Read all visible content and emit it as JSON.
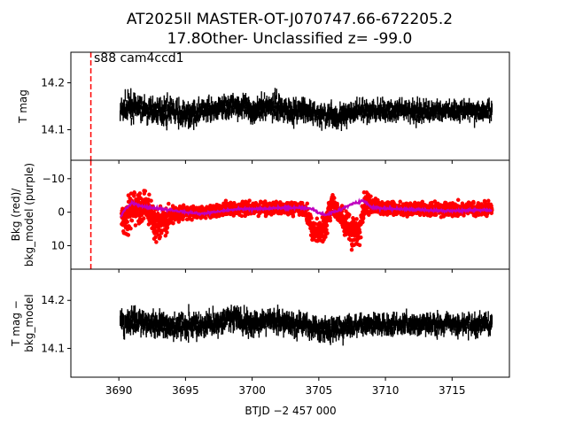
{
  "title_line1": "AT2025ll  MASTER-OT-J070747.66-672205.2",
  "title_line2": "17.8Other- Unclassified z= -99.0",
  "annotation": "s88 cam4ccd1",
  "xlabel": "BTJD −2 457 000",
  "colors": {
    "data": "#000000",
    "background": "#ff0000",
    "model": "#bf00bf",
    "marker_line": "#ff0000"
  },
  "chart_data": [
    {
      "type": "scatter",
      "panel": "top",
      "ylabel": "T mag",
      "y_inverted": true,
      "xlim": [
        3686.4,
        3719.3
      ],
      "ylim": [
        14.265,
        14.035
      ],
      "xticks": [
        3690,
        3695,
        3700,
        3705,
        3710,
        3715
      ],
      "yticks": [
        14.1,
        14.2
      ],
      "ytick_labels": [
        "14.1",
        "14.2"
      ],
      "sector_marker_x": 3687.9,
      "series": [
        {
          "x": [
            3690.1,
            3691.0,
            3692.0,
            3693.0,
            3694.0,
            3695.0,
            3696.0,
            3697.0,
            3698.0,
            3699.0,
            3700.0,
            3701.0,
            3702.0,
            3703.0,
            3704.0,
            3705.0,
            3706.0,
            3707.0,
            3708.0,
            3709.0,
            3710.0,
            3711.0,
            3712.0,
            3713.0,
            3714.0,
            3715.0,
            3716.0,
            3717.0,
            3718.0
          ],
          "y": [
            14.14,
            14.15,
            14.14,
            14.14,
            14.14,
            14.13,
            14.14,
            14.14,
            14.15,
            14.15,
            14.14,
            14.15,
            14.15,
            14.14,
            14.14,
            14.13,
            14.13,
            14.13,
            14.14,
            14.14,
            14.14,
            14.14,
            14.14,
            14.14,
            14.14,
            14.14,
            14.14,
            14.14,
            14.14
          ],
          "scatter": [
            0.045,
            0.05,
            0.045,
            0.045,
            0.045,
            0.045,
            0.045,
            0.045,
            0.045,
            0.045,
            0.045,
            0.045,
            0.045,
            0.045,
            0.045,
            0.045,
            0.045,
            0.045,
            0.04,
            0.04,
            0.04,
            0.04,
            0.04,
            0.04,
            0.04,
            0.04,
            0.04,
            0.04,
            0.04
          ]
        }
      ]
    },
    {
      "type": "scatter",
      "panel": "middle",
      "ylabel": "Bkg (red)/\nbkg_model (purple)",
      "xlim": [
        3686.4,
        3719.3
      ],
      "ylim": [
        -15.5,
        17
      ],
      "xticks": [
        3690,
        3695,
        3700,
        3705,
        3710,
        3715
      ],
      "yticks": [
        -10,
        0,
        10
      ],
      "ytick_labels": [
        "−10",
        "0",
        "10"
      ],
      "sector_marker_x": 3687.9,
      "series": [
        {
          "role": "background",
          "x": [
            3690.2,
            3690.6,
            3691.0,
            3691.4,
            3692.0,
            3692.5,
            3693.0,
            3693.5,
            3694.0,
            3695.0,
            3696.0,
            3697.0,
            3698.0,
            3699.0,
            3700.0,
            3701.0,
            3702.0,
            3703.0,
            3704.0,
            3704.5,
            3705.0,
            3705.5,
            3706.0,
            3706.5,
            3707.0,
            3707.5,
            3708.0,
            3708.5,
            3709.0,
            3710.0,
            3711.0,
            3712.0,
            3713.0,
            3714.0,
            3715.0,
            3716.0,
            3717.0,
            3718.0
          ],
          "y": [
            2,
            3,
            -2,
            -1,
            -3,
            2,
            4,
            3,
            1,
            0,
            0,
            0,
            -1,
            -1,
            -1,
            -1,
            -1,
            -1,
            -1,
            5,
            6,
            4,
            -2,
            1,
            3,
            6,
            6,
            -3,
            -2,
            -1,
            -1,
            -1,
            -1,
            -1,
            -1,
            -1,
            -1,
            -1
          ],
          "scatter": [
            12,
            13,
            12,
            10,
            9,
            10,
            11,
            10,
            6,
            4,
            4,
            4,
            4,
            4,
            4,
            4,
            4,
            4,
            4,
            9,
            8,
            10,
            8,
            6,
            9,
            10,
            9,
            8,
            5,
            4,
            4,
            4,
            4,
            4,
            4,
            4,
            4,
            4
          ]
        },
        {
          "role": "model",
          "x": [
            3690.1,
            3690.5,
            3691.0,
            3691.5,
            3692.0,
            3693.0,
            3694.0,
            3695.0,
            3696.0,
            3697.0,
            3698.0,
            3699.0,
            3700.0,
            3701.0,
            3702.0,
            3703.0,
            3704.0,
            3704.5,
            3705.0,
            3705.5,
            3706.0,
            3706.5,
            3707.0,
            3707.5,
            3708.0,
            3708.3,
            3709.0,
            3710.0,
            3711.0,
            3712.0,
            3713.0,
            3714.0,
            3715.0,
            3716.0,
            3717.0,
            3718.0
          ],
          "y": [
            1.5,
            -1,
            -3,
            -2,
            -1.5,
            -1,
            -0.5,
            0,
            0.5,
            0,
            -0.5,
            -1,
            -1,
            -1,
            -1.2,
            -1.3,
            -1.2,
            -1,
            0.3,
            0.8,
            0,
            -0.5,
            -1.5,
            -2.5,
            -3,
            -3.5,
            -1.5,
            -1,
            -1,
            -0.8,
            -0.6,
            -0.5,
            -0.4,
            -0.5,
            -0.6,
            -0.5
          ]
        }
      ]
    },
    {
      "type": "scatter",
      "panel": "bottom",
      "ylabel": "T mag −\nbkg_model",
      "y_inverted": true,
      "xlim": [
        3686.4,
        3719.3
      ],
      "ylim": [
        14.265,
        14.04
      ],
      "xticks": [
        3690,
        3695,
        3700,
        3705,
        3710,
        3715
      ],
      "xtick_labels": [
        "3690",
        "3695",
        "3700",
        "3705",
        "3710",
        "3715"
      ],
      "yticks": [
        14.1,
        14.2
      ],
      "ytick_labels": [
        "14.1",
        "14.2"
      ],
      "series": [
        {
          "x": [
            3690.1,
            3691.0,
            3692.0,
            3693.0,
            3694.0,
            3695.0,
            3696.0,
            3697.0,
            3698.0,
            3699.0,
            3700.0,
            3701.0,
            3702.0,
            3703.0,
            3704.0,
            3705.0,
            3706.0,
            3707.0,
            3708.0,
            3709.0,
            3710.0,
            3711.0,
            3712.0,
            3713.0,
            3714.0,
            3715.0,
            3716.0,
            3717.0,
            3718.0
          ],
          "y": [
            14.15,
            14.16,
            14.15,
            14.15,
            14.15,
            14.15,
            14.15,
            14.15,
            14.16,
            14.16,
            14.15,
            14.16,
            14.16,
            14.15,
            14.15,
            14.14,
            14.14,
            14.14,
            14.15,
            14.15,
            14.15,
            14.15,
            14.15,
            14.15,
            14.15,
            14.15,
            14.15,
            14.15,
            14.15
          ],
          "scatter": [
            0.045,
            0.05,
            0.045,
            0.045,
            0.045,
            0.045,
            0.045,
            0.045,
            0.045,
            0.045,
            0.045,
            0.045,
            0.045,
            0.045,
            0.045,
            0.045,
            0.045,
            0.045,
            0.04,
            0.04,
            0.04,
            0.04,
            0.04,
            0.04,
            0.04,
            0.04,
            0.04,
            0.04,
            0.04
          ]
        }
      ]
    }
  ]
}
